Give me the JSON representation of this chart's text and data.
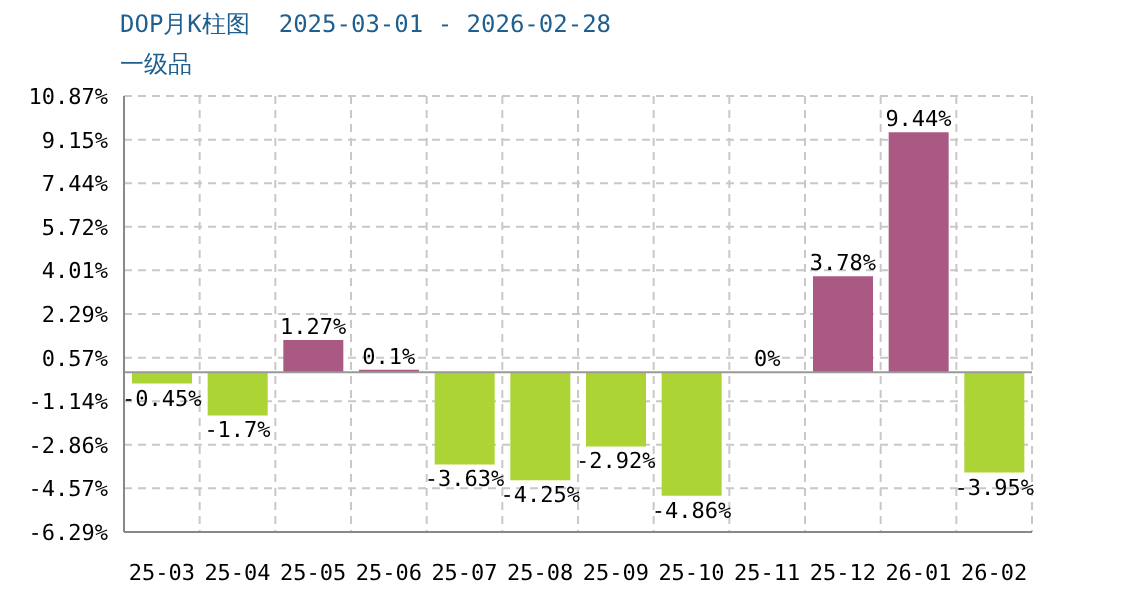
{
  "chart_data": {
    "type": "bar",
    "title": "DOP月K柱图  2025-03-01 - 2026-02-28",
    "subtitle": "一级品",
    "categories": [
      "25-03",
      "25-04",
      "25-05",
      "25-06",
      "25-07",
      "25-08",
      "25-09",
      "25-10",
      "25-11",
      "25-12",
      "26-01",
      "26-02"
    ],
    "values": [
      -0.45,
      -1.7,
      1.27,
      0.1,
      -3.63,
      -4.25,
      -2.92,
      -4.86,
      0,
      3.78,
      9.44,
      -3.95
    ],
    "colors": [
      "#acd434",
      "#acd434",
      "#aa5a82",
      "#aa5a82",
      "#acd434",
      "#acd434",
      "#acd434",
      "#acd434",
      "#aa5a82",
      "#aa5a82",
      "#aa5a82",
      "#acd434"
    ],
    "value_labels": [
      "-0.45%",
      "-1.7%",
      "1.27%",
      "0.1%",
      "-3.63%",
      "-4.25%",
      "-2.92%",
      "-4.86%",
      "0%",
      "3.78%",
      "9.44%",
      "-3.95%"
    ],
    "ylim": [
      -6.29,
      10.87
    ],
    "yticks": [
      {
        "value": -6.29,
        "label": "-6.29%"
      },
      {
        "value": -4.57,
        "label": "-4.57%"
      },
      {
        "value": -2.86,
        "label": "-2.86%"
      },
      {
        "value": -1.14,
        "label": "-1.14%"
      },
      {
        "value": 0.57,
        "label": "0.57%"
      },
      {
        "value": 2.29,
        "label": "2.29%"
      },
      {
        "value": 4.01,
        "label": "4.01%"
      },
      {
        "value": 5.72,
        "label": "5.72%"
      },
      {
        "value": 7.44,
        "label": "7.44%"
      },
      {
        "value": 9.15,
        "label": "9.15%"
      },
      {
        "value": 10.87,
        "label": "10.87%"
      }
    ],
    "ref_lines": [
      {
        "axis": "y",
        "value": 0,
        "color": "#999999"
      }
    ],
    "grid": true
  }
}
